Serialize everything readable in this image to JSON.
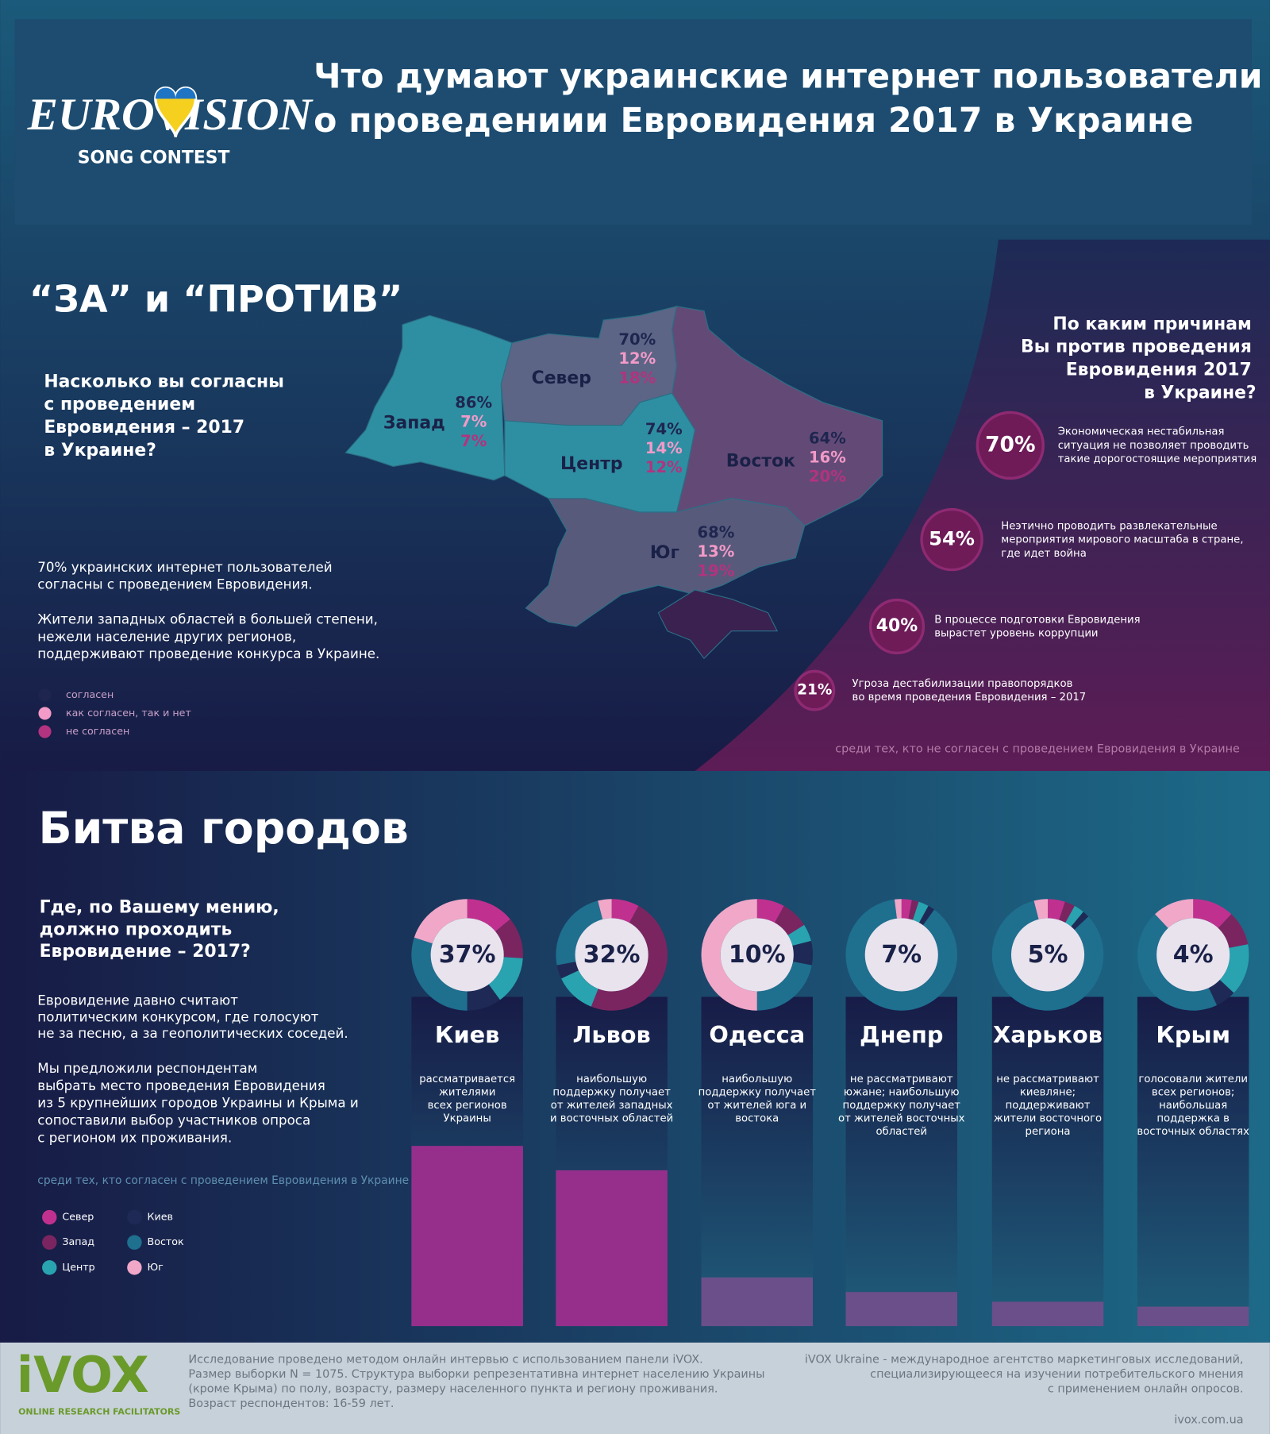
{
  "header": {
    "logo_main": "EUROVISION",
    "logo_sub": "SONG CONTEST",
    "title": [
      "Что думают украинские интернет пользователи",
      "о проведениии Евровидения 2017 в Украине"
    ]
  },
  "poll": {
    "heading": "“ЗА” и “ПРОТИВ”",
    "question": [
      "Насколько вы согласны",
      "с проведением",
      "Евровидения – 2017",
      "в Украине?"
    ],
    "regions": [
      {
        "name": "Запад",
        "agree": "86%",
        "neutral": "7%",
        "disagree": "7%"
      },
      {
        "name": "Север",
        "agree": "70%",
        "neutral": "12%",
        "disagree": "18%"
      },
      {
        "name": "Центр",
        "agree": "74%",
        "neutral": "14%",
        "disagree": "12%"
      },
      {
        "name": "Восток",
        "agree": "64%",
        "neutral": "16%",
        "disagree": "20%"
      },
      {
        "name": "Юг",
        "agree": "68%",
        "neutral": "13%",
        "disagree": "19%"
      }
    ],
    "notes": [
      [
        "70% украинских интернет пользователей",
        "согласны с проведением Евровидения."
      ],
      [
        "Жители западных областей в большей степени,",
        "нежели население других регионов,",
        "поддерживают проведение конкурса в Украине."
      ]
    ],
    "legend": [
      {
        "name": "согласен",
        "color": "#1e2650"
      },
      {
        "name": "как согласен, так и нет",
        "color": "#f29ac8"
      },
      {
        "name": "не согласен",
        "color": "#b2337f"
      }
    ],
    "against": {
      "question": [
        "По каким причинам",
        "Вы против проведения",
        "Евровидения 2017",
        "в Украине?"
      ],
      "reasons": [
        {
          "value": "70%",
          "text": [
            "Экономическая нестабильная",
            "ситуация не позволяет проводить",
            "такие дорогостоящие мероприятия"
          ]
        },
        {
          "value": "54%",
          "text": [
            "Неэтично проводить развлекательные",
            "мероприятия мирового масштаба в стране,",
            "где идет война"
          ]
        },
        {
          "value": "40%",
          "text": [
            "В процессе подготовки Евровидения",
            "вырастет уровень коррупции"
          ]
        },
        {
          "value": "21%",
          "text": [
            "Угроза дестабилизации правопорядков",
            "во время проведения Евровидения – 2017"
          ]
        }
      ],
      "footnote": "среди тех, кто не согласен с проведением Евровидения в Украине"
    }
  },
  "cities": {
    "heading": "Битва городов",
    "question": [
      "Где, по Вашему мению,",
      "должно проходить",
      "Евровидение – 2017?"
    ],
    "paragraphs": [
      [
        "Евровидение давно считают",
        "политическим конкурсом, где голосуют",
        "не за песню, а за геополитических соседей."
      ],
      [
        "Мы предложили респондентам",
        "выбрать место проведения Евровидения",
        "из 5 крупнейших городов Украины и Крыма и",
        "сопоставили выбор участников опроса",
        "с регионом их проживания."
      ]
    ],
    "footnote": "среди тех, кто согласен с проведением Евровидения в Украине",
    "legend": [
      {
        "name": "Север",
        "color": "#c0318f"
      },
      {
        "name": "Запад",
        "color": "#7b2560"
      },
      {
        "name": "Центр",
        "color": "#29a3b0"
      },
      {
        "name": "Киев",
        "color": "#1e2a55"
      },
      {
        "name": "Восток",
        "color": "#1f6f8f"
      },
      {
        "name": "Юг",
        "color": "#f0a7c8"
      }
    ],
    "items": [
      {
        "name": "Киев",
        "share": 37,
        "share_label": "37%",
        "color": "#962f8c",
        "description": [
          "рассматривается",
          "жителями",
          "всех регионов",
          "Украины"
        ],
        "regions": [
          14,
          12,
          14,
          10,
          30,
          20
        ]
      },
      {
        "name": "Львов",
        "share": 32,
        "share_label": "32%",
        "color": "#962f8c",
        "description": [
          "наибольшую",
          "поддержку получает",
          "от жителей западных",
          "и восточных областей"
        ],
        "regions": [
          8,
          48,
          12,
          4,
          24,
          4
        ]
      },
      {
        "name": "Одесса",
        "share": 10,
        "share_label": "10%",
        "color": "#6b4f8a",
        "description": [
          "наибольшую",
          "поддержку получает",
          "от жителей юга и",
          "востока"
        ],
        "regions": [
          8,
          8,
          5,
          7,
          22,
          50
        ]
      },
      {
        "name": "Днепр",
        "share": 7,
        "share_label": "7%",
        "color": "#6b4f8a",
        "description": [
          "не рассматривают",
          "южане; наибольшую",
          "поддержку получает",
          "от жителей восточных",
          "областей"
        ],
        "regions": [
          3,
          2,
          3,
          2,
          88,
          2
        ]
      },
      {
        "name": "Харьков",
        "share": 5,
        "share_label": "5%",
        "color": "#6b4f8a",
        "description": [
          "не рассматривают",
          "киевляне;",
          "поддерживают",
          "жители восточного",
          "региона"
        ],
        "regions": [
          5,
          3,
          3,
          2,
          83,
          4
        ]
      },
      {
        "name": "Крым",
        "share": 4,
        "share_label": "4%",
        "color": "#6b4f8a",
        "description": [
          "голосовали жители",
          "всех регионов;",
          "наибольшая",
          "поддержка в",
          "восточных областях"
        ],
        "regions": [
          12,
          10,
          15,
          6,
          45,
          12
        ]
      }
    ]
  },
  "footer": {
    "logo": "iVOX",
    "logo_sub": "ONLINE RESEARCH FACILITATORS",
    "method": [
      "Исследование проведено методом онлайн интервью с использованием панели iVOX.",
      "Размер выборки N = 1075. Структура выборки репрезентативна интернет населению Украины",
      "(кроме Крыма) по полу, возрасту, размеру населенного пункта и региону проживания.",
      "Возраст респондентов: 16-59 лет."
    ],
    "about": [
      "iVOX Ukraine - международное агентство маркетинговых исследований,",
      "специализирующееся на изучении потребительского мнения",
      "с применением онлайн опросов."
    ],
    "url": "ivox.com.ua"
  }
}
